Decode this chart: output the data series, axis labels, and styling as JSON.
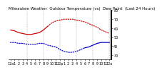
{
  "title": "Milwaukee Weather  Outdoor Temperature (vs)  Dew Point  (Last 24 Hours)",
  "background_color": "#ffffff",
  "grid_color": "#999999",
  "temp_color": "#cc0000",
  "dew_color": "#0000cc",
  "ylim": [
    25,
    80
  ],
  "ytick_vals": [
    30,
    40,
    50,
    60,
    70,
    80
  ],
  "ytick_labels": [
    "30",
    "40",
    "50",
    "60",
    "70",
    "80"
  ],
  "n_points": 25,
  "temp_data": [
    58,
    57,
    55,
    54,
    53,
    53,
    54,
    55,
    58,
    62,
    66,
    68,
    69,
    70,
    70,
    70,
    69,
    68,
    67,
    65,
    63,
    61,
    58,
    56,
    54
  ],
  "dew_data": [
    44,
    44,
    43,
    43,
    42,
    42,
    42,
    43,
    43,
    41,
    40,
    39,
    36,
    34,
    33,
    33,
    34,
    36,
    38,
    39,
    41,
    43,
    44,
    44,
    44
  ],
  "temp_split": 9,
  "dew_split": 18,
  "xlabel_fontsize": 3.5,
  "ylabel_fontsize": 3.5,
  "title_fontsize": 4.0,
  "x_labels": [
    "12a",
    "1",
    "2",
    "3",
    "4",
    "5",
    "6",
    "7",
    "8",
    "9",
    "10",
    "11",
    "12p",
    "1",
    "2",
    "3",
    "4",
    "5",
    "6",
    "7",
    "8",
    "9",
    "10",
    "11",
    "12a"
  ],
  "vline_positions": [
    4,
    8,
    12,
    16,
    20,
    24
  ],
  "linewidth": 0.9
}
